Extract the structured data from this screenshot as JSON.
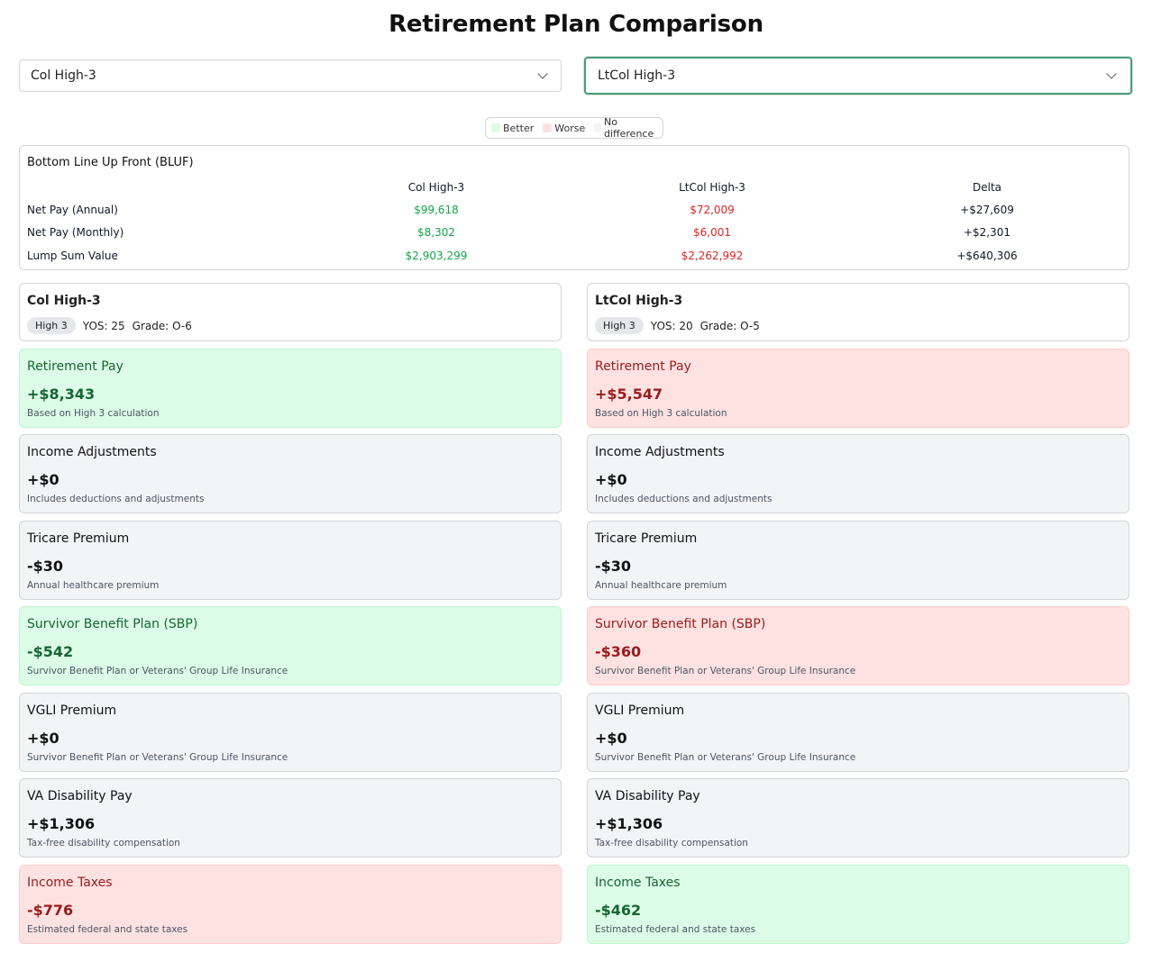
{
  "title": "Retirement Plan Comparison",
  "selectors": {
    "left": {
      "value": "Col High-3"
    },
    "right": {
      "value": "LtCol High-3"
    }
  },
  "legend": {
    "better": "Better",
    "worse": "Worse",
    "no_difference": "No difference",
    "colors": {
      "better": "#dcfce7",
      "worse": "#fee2e2",
      "no_difference": "#f3f4f6"
    }
  },
  "bluf": {
    "heading": "Bottom Line Up Front (BLUF)",
    "columns": [
      "Col High-3",
      "LtCol High-3",
      "Delta"
    ],
    "rows": [
      {
        "label": "Net Pay (Annual)",
        "a": "$99,618",
        "b": "$72,009",
        "delta": "+$27,609"
      },
      {
        "label": "Net Pay (Monthly)",
        "a": "$8,302",
        "b": "$6,001",
        "delta": "+$2,301"
      },
      {
        "label": "Lump Sum Value",
        "a": "$2,903,299",
        "b": "$2,262,992",
        "delta": "+$640,306"
      }
    ]
  },
  "plans": {
    "left": {
      "name": "Col High-3",
      "badge": "High 3",
      "yos": "YOS: 25",
      "grade": "Grade: O-6",
      "cards": [
        {
          "title": "Retirement Pay",
          "value": "+$8,343",
          "desc": "Based on High 3 calculation",
          "status": "better"
        },
        {
          "title": "Income Adjustments",
          "value": "+$0",
          "desc": "Includes deductions and adjustments",
          "status": "neutral"
        },
        {
          "title": "Tricare Premium",
          "value": "-$30",
          "desc": "Annual healthcare premium",
          "status": "neutral"
        },
        {
          "title": "Survivor Benefit Plan (SBP)",
          "value": "-$542",
          "desc": "Survivor Benefit Plan or Veterans' Group Life Insurance",
          "status": "better"
        },
        {
          "title": "VGLI Premium",
          "value": "+$0",
          "desc": "Survivor Benefit Plan or Veterans' Group Life Insurance",
          "status": "neutral"
        },
        {
          "title": "VA Disability Pay",
          "value": "+$1,306",
          "desc": "Tax-free disability compensation",
          "status": "neutral"
        },
        {
          "title": "Income Taxes",
          "value": "-$776",
          "desc": "Estimated federal and state taxes",
          "status": "worse"
        }
      ]
    },
    "right": {
      "name": "LtCol High-3",
      "badge": "High 3",
      "yos": "YOS: 20",
      "grade": "Grade: O-5",
      "cards": [
        {
          "title": "Retirement Pay",
          "value": "+$5,547",
          "desc": "Based on High 3 calculation",
          "status": "worse"
        },
        {
          "title": "Income Adjustments",
          "value": "+$0",
          "desc": "Includes deductions and adjustments",
          "status": "neutral"
        },
        {
          "title": "Tricare Premium",
          "value": "-$30",
          "desc": "Annual healthcare premium",
          "status": "neutral"
        },
        {
          "title": "Survivor Benefit Plan (SBP)",
          "value": "-$360",
          "desc": "Survivor Benefit Plan or Veterans' Group Life Insurance",
          "status": "worse"
        },
        {
          "title": "VGLI Premium",
          "value": "+$0",
          "desc": "Survivor Benefit Plan or Veterans' Group Life Insurance",
          "status": "neutral"
        },
        {
          "title": "VA Disability Pay",
          "value": "+$1,306",
          "desc": "Tax-free disability compensation",
          "status": "neutral"
        },
        {
          "title": "Income Taxes",
          "value": "-$462",
          "desc": "Estimated federal and state taxes",
          "status": "better"
        }
      ]
    }
  }
}
